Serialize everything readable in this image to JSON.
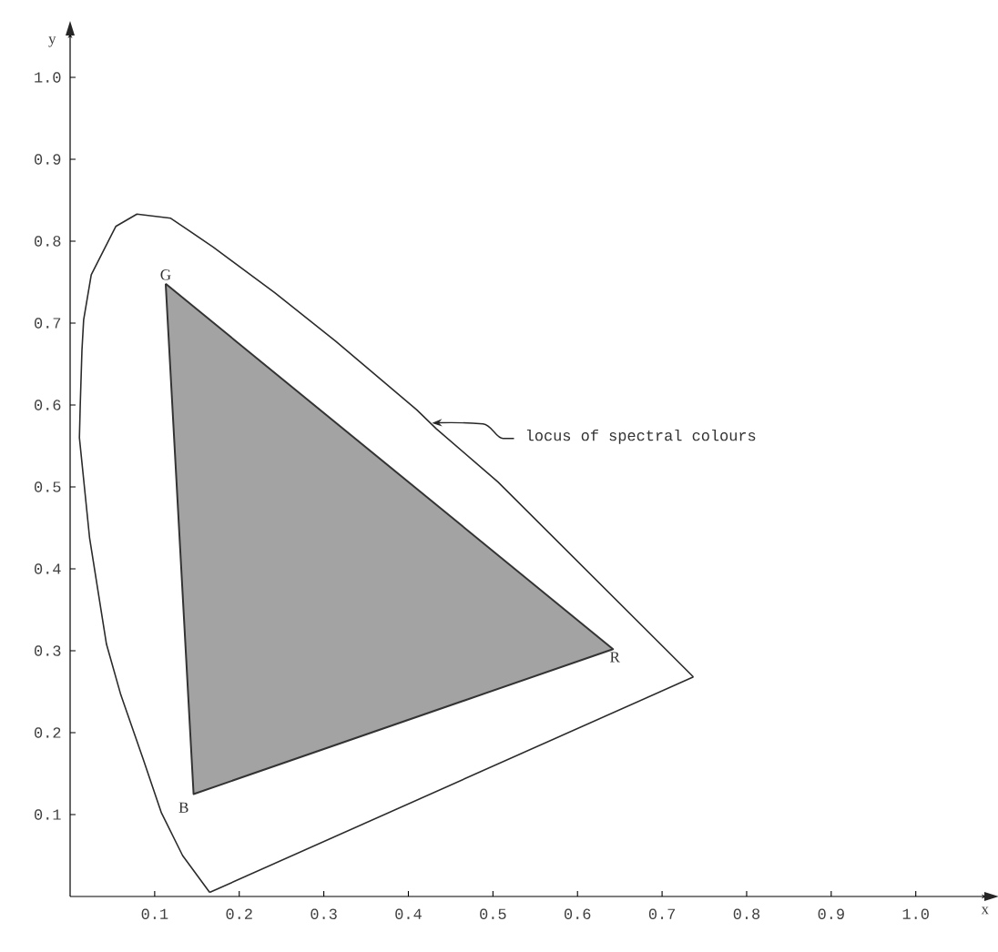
{
  "chart_data": {
    "type": "line",
    "xlabel": "x",
    "ylabel": "y",
    "xlim": [
      0,
      1.08
    ],
    "ylim": [
      0,
      1.05
    ],
    "xticks": [
      0.1,
      0.2,
      0.3,
      0.4,
      0.5,
      0.6,
      0.7,
      0.8,
      0.9,
      {
        "value": 1,
        "label": "1.0"
      }
    ],
    "yticks": [
      0.1,
      0.2,
      0.3,
      0.4,
      0.5,
      0.6,
      0.7,
      0.8,
      0.9,
      {
        "value": 1,
        "label": "1.0"
      }
    ],
    "grid": false,
    "marker": "none",
    "line_style": "solid",
    "series": [
      {
        "color": "#2b2b2b",
        "x": [
          0.165,
          0.133,
          0.108,
          0.086,
          0.06,
          0.043,
          0.023,
          0.011,
          0.012,
          0.014,
          0.016,
          0.025,
          0.054,
          0.079,
          0.119,
          0.169,
          0.242,
          0.314,
          0.41,
          0.433,
          0.506,
          0.737
        ],
        "values": [
          0.005,
          0.05,
          0.102,
          0.169,
          0.246,
          0.308,
          0.438,
          0.56,
          0.601,
          0.667,
          0.704,
          0.759,
          0.818,
          0.833,
          0.828,
          0.793,
          0.737,
          0.678,
          0.594,
          0.571,
          0.506,
          0.268
        ]
      },
      {
        "color": "#2b2b2b",
        "x": [
          0.165,
          0.737
        ],
        "values": [
          0.005,
          0.268
        ]
      },
      {
        "type": "area",
        "color": "#333333",
        "x": [
          0.113,
          0.642,
          0.146,
          0.113
        ],
        "values": [
          0.748,
          0.302,
          0.125,
          0.748
        ]
      }
    ],
    "annotations": [
      {
        "text": "G",
        "x": 0.113,
        "y": 0.748
      },
      {
        "text": "R",
        "x": 0.642,
        "y": 0.302
      },
      {
        "text": "B",
        "x": 0.146,
        "y": 0.125
      },
      {
        "text": "locus of spectral colours",
        "x": 0.428,
        "y": 0.578
      }
    ]
  }
}
